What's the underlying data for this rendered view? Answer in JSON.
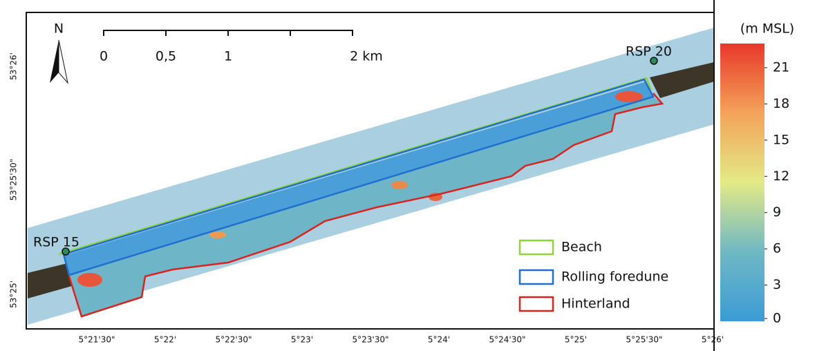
{
  "map": {
    "north": "N",
    "scale_bar": {
      "labels": [
        "0",
        "0,5",
        "1",
        "2 km"
      ]
    },
    "x_labels": [
      "5°21'30\"",
      "5°22'",
      "5°22'30\"",
      "5°23'",
      "5°23'30\"",
      "5°24'",
      "5°24'30\"",
      "5°25'",
      "5°25'30\"",
      "5°26'"
    ],
    "y_labels": [
      "53°26'",
      "53°25'30\"",
      "53°25'"
    ],
    "points": [
      {
        "label": "RSP 15"
      },
      {
        "label": "RSP 20"
      }
    ],
    "legend": {
      "items": [
        {
          "label": "Beach",
          "color": "#8fd43a"
        },
        {
          "label": "Rolling foredune",
          "color": "#1f6fd1"
        },
        {
          "label": "Hinterland",
          "color": "#d9231f"
        }
      ]
    },
    "colorbar": {
      "title": "(m MSL)",
      "range": [
        0,
        23
      ],
      "ticks": [
        0,
        3,
        6,
        9,
        12,
        15,
        18,
        21
      ]
    }
  }
}
